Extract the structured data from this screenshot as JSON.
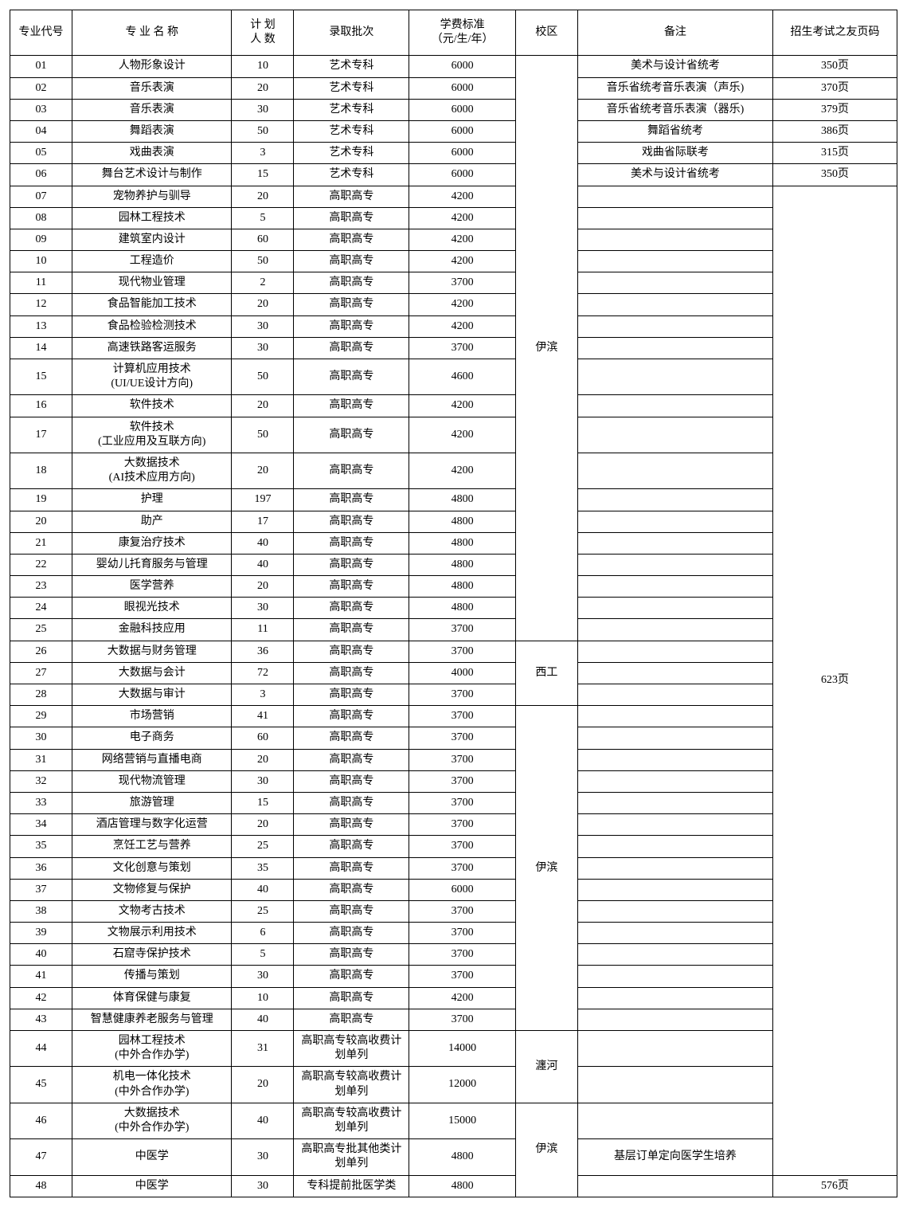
{
  "table": {
    "headers": {
      "code": "专业代号",
      "name": "专 业 名 称",
      "count": "计 划\n人 数",
      "batch": "录取批次",
      "fee": "学费标准\n（元/生/年）",
      "campus": "校区",
      "remark": "备注",
      "page": "招生考试之友页码"
    },
    "rows": [
      {
        "code": "01",
        "name": "人物形象设计",
        "count": "10",
        "batch": "艺术专科",
        "fee": "6000",
        "remark": "美术与设计省统考",
        "page": "350页"
      },
      {
        "code": "02",
        "name": "音乐表演",
        "count": "20",
        "batch": "艺术专科",
        "fee": "6000",
        "remark": "音乐省统考音乐表演（声乐)",
        "page": "370页"
      },
      {
        "code": "03",
        "name": "音乐表演",
        "count": "30",
        "batch": "艺术专科",
        "fee": "6000",
        "remark": "音乐省统考音乐表演（器乐)",
        "page": "379页"
      },
      {
        "code": "04",
        "name": "舞蹈表演",
        "count": "50",
        "batch": "艺术专科",
        "fee": "6000",
        "remark": "舞蹈省统考",
        "page": "386页"
      },
      {
        "code": "05",
        "name": "戏曲表演",
        "count": "3",
        "batch": "艺术专科",
        "fee": "6000",
        "remark": "戏曲省际联考",
        "page": "315页"
      },
      {
        "code": "06",
        "name": "舞台艺术设计与制作",
        "count": "15",
        "batch": "艺术专科",
        "fee": "6000",
        "remark": "美术与设计省统考",
        "page": "350页"
      },
      {
        "code": "07",
        "name": "宠物养护与驯导",
        "count": "20",
        "batch": "高职高专",
        "fee": "4200",
        "remark": "",
        "page": ""
      },
      {
        "code": "08",
        "name": "园林工程技术",
        "count": "5",
        "batch": "高职高专",
        "fee": "4200",
        "remark": "",
        "page": ""
      },
      {
        "code": "09",
        "name": "建筑室内设计",
        "count": "60",
        "batch": "高职高专",
        "fee": "4200",
        "remark": "",
        "page": ""
      },
      {
        "code": "10",
        "name": "工程造价",
        "count": "50",
        "batch": "高职高专",
        "fee": "4200",
        "remark": "",
        "page": ""
      },
      {
        "code": "11",
        "name": "现代物业管理",
        "count": "2",
        "batch": "高职高专",
        "fee": "3700",
        "remark": "",
        "page": ""
      },
      {
        "code": "12",
        "name": "食品智能加工技术",
        "count": "20",
        "batch": "高职高专",
        "fee": "4200",
        "remark": "",
        "page": ""
      },
      {
        "code": "13",
        "name": "食品检验检测技术",
        "count": "30",
        "batch": "高职高专",
        "fee": "4200",
        "remark": "",
        "page": ""
      },
      {
        "code": "14",
        "name": "高速铁路客运服务",
        "count": "30",
        "batch": "高职高专",
        "fee": "3700",
        "remark": "",
        "page": ""
      },
      {
        "code": "15",
        "name": "计算机应用技术\n(UI/UE设计方向)",
        "count": "50",
        "batch": "高职高专",
        "fee": "4600",
        "remark": "",
        "page": ""
      },
      {
        "code": "16",
        "name": "软件技术",
        "count": "20",
        "batch": "高职高专",
        "fee": "4200",
        "remark": "",
        "page": ""
      },
      {
        "code": "17",
        "name": "软件技术\n(工业应用及互联方向)",
        "count": "50",
        "batch": "高职高专",
        "fee": "4200",
        "remark": "",
        "page": ""
      },
      {
        "code": "18",
        "name": "大数据技术\n(AI技术应用方向)",
        "count": "20",
        "batch": "高职高专",
        "fee": "4200",
        "remark": "",
        "page": ""
      },
      {
        "code": "19",
        "name": "护理",
        "count": "197",
        "batch": "高职高专",
        "fee": "4800",
        "remark": "",
        "page": ""
      },
      {
        "code": "20",
        "name": "助产",
        "count": "17",
        "batch": "高职高专",
        "fee": "4800",
        "remark": "",
        "page": ""
      },
      {
        "code": "21",
        "name": "康复治疗技术",
        "count": "40",
        "batch": "高职高专",
        "fee": "4800",
        "remark": "",
        "page": ""
      },
      {
        "code": "22",
        "name": "婴幼儿托育服务与管理",
        "count": "40",
        "batch": "高职高专",
        "fee": "4800",
        "remark": "",
        "page": ""
      },
      {
        "code": "23",
        "name": "医学营养",
        "count": "20",
        "batch": "高职高专",
        "fee": "4800",
        "remark": "",
        "page": ""
      },
      {
        "code": "24",
        "name": "眼视光技术",
        "count": "30",
        "batch": "高职高专",
        "fee": "4800",
        "remark": "",
        "page": ""
      },
      {
        "code": "25",
        "name": "金融科技应用",
        "count": "11",
        "batch": "高职高专",
        "fee": "3700",
        "remark": "",
        "page": ""
      },
      {
        "code": "26",
        "name": "大数据与财务管理",
        "count": "36",
        "batch": "高职高专",
        "fee": "3700",
        "remark": "",
        "page": ""
      },
      {
        "code": "27",
        "name": "大数据与会计",
        "count": "72",
        "batch": "高职高专",
        "fee": "4000",
        "remark": "",
        "page": ""
      },
      {
        "code": "28",
        "name": "大数据与审计",
        "count": "3",
        "batch": "高职高专",
        "fee": "3700",
        "remark": "",
        "page": ""
      },
      {
        "code": "29",
        "name": "市场营销",
        "count": "41",
        "batch": "高职高专",
        "fee": "3700",
        "remark": "",
        "page": ""
      },
      {
        "code": "30",
        "name": "电子商务",
        "count": "60",
        "batch": "高职高专",
        "fee": "3700",
        "remark": "",
        "page": ""
      },
      {
        "code": "31",
        "name": "网络营销与直播电商",
        "count": "20",
        "batch": "高职高专",
        "fee": "3700",
        "remark": "",
        "page": ""
      },
      {
        "code": "32",
        "name": "现代物流管理",
        "count": "30",
        "batch": "高职高专",
        "fee": "3700",
        "remark": "",
        "page": ""
      },
      {
        "code": "33",
        "name": "旅游管理",
        "count": "15",
        "batch": "高职高专",
        "fee": "3700",
        "remark": "",
        "page": ""
      },
      {
        "code": "34",
        "name": "酒店管理与数字化运营",
        "count": "20",
        "batch": "高职高专",
        "fee": "3700",
        "remark": "",
        "page": ""
      },
      {
        "code": "35",
        "name": "烹饪工艺与营养",
        "count": "25",
        "batch": "高职高专",
        "fee": "3700",
        "remark": "",
        "page": ""
      },
      {
        "code": "36",
        "name": "文化创意与策划",
        "count": "35",
        "batch": "高职高专",
        "fee": "3700",
        "remark": "",
        "page": ""
      },
      {
        "code": "37",
        "name": "文物修复与保护",
        "count": "40",
        "batch": "高职高专",
        "fee": "6000",
        "remark": "",
        "page": ""
      },
      {
        "code": "38",
        "name": "文物考古技术",
        "count": "25",
        "batch": "高职高专",
        "fee": "3700",
        "remark": "",
        "page": ""
      },
      {
        "code": "39",
        "name": "文物展示利用技术",
        "count": "6",
        "batch": "高职高专",
        "fee": "3700",
        "remark": "",
        "page": ""
      },
      {
        "code": "40",
        "name": "石窟寺保护技术",
        "count": "5",
        "batch": "高职高专",
        "fee": "3700",
        "remark": "",
        "page": ""
      },
      {
        "code": "41",
        "name": "传播与策划",
        "count": "30",
        "batch": "高职高专",
        "fee": "3700",
        "remark": "",
        "page": ""
      },
      {
        "code": "42",
        "name": "体育保健与康复",
        "count": "10",
        "batch": "高职高专",
        "fee": "4200",
        "remark": "",
        "page": ""
      },
      {
        "code": "43",
        "name": "智慧健康养老服务与管理",
        "count": "40",
        "batch": "高职高专",
        "fee": "3700",
        "remark": "",
        "page": ""
      },
      {
        "code": "44",
        "name": "园林工程技术\n(中外合作办学)",
        "count": "31",
        "batch": "高职高专较高收费计划单列",
        "fee": "14000",
        "remark": "",
        "page": ""
      },
      {
        "code": "45",
        "name": "机电一体化技术\n(中外合作办学)",
        "count": "20",
        "batch": "高职高专较高收费计划单列",
        "fee": "12000",
        "remark": "",
        "page": ""
      },
      {
        "code": "46",
        "name": "大数据技术\n(中外合作办学)",
        "count": "40",
        "batch": "高职高专较高收费计划单列",
        "fee": "15000",
        "remark": "",
        "page": ""
      },
      {
        "code": "47",
        "name": "中医学",
        "count": "30",
        "batch": "高职高专批其他类计划单列",
        "fee": "4800",
        "remark": "基层订单定向医学生培养",
        "page": ""
      },
      {
        "code": "48",
        "name": "中医学",
        "count": "30",
        "batch": "专科提前批医学类",
        "fee": "4800",
        "remark": "",
        "page": "576页"
      }
    ],
    "campus_merges": [
      {
        "start": 0,
        "span": 25,
        "label": "伊滨"
      },
      {
        "start": 25,
        "span": 3,
        "label": "西工"
      },
      {
        "start": 28,
        "span": 15,
        "label": "伊滨"
      },
      {
        "start": 43,
        "span": 2,
        "label": "瀍河"
      },
      {
        "start": 45,
        "span": 3,
        "label": "伊滨"
      }
    ],
    "page_merges": [
      {
        "start": 6,
        "span": 41,
        "label": "623页"
      }
    ]
  }
}
